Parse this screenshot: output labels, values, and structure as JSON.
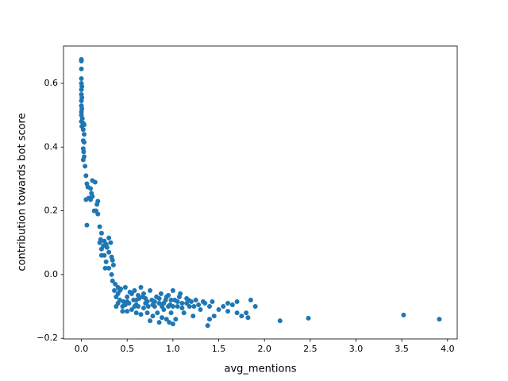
{
  "chart_data": {
    "type": "scatter",
    "xlabel": "avg_mentions",
    "ylabel": "contribution towards bot score",
    "color": "#1f77b4",
    "xlim": [
      -0.1955,
      4.1055
    ],
    "ylim": [
      -0.202,
      0.717
    ],
    "xticks": [
      {
        "value": 0,
        "label": "0.0"
      },
      0.5,
      {
        "value": 1,
        "label": "1.0"
      },
      1.5,
      {
        "value": 2,
        "label": "2.0"
      },
      2.5,
      {
        "value": 3,
        "label": "3.0"
      },
      3.5,
      {
        "value": 4,
        "label": "4.0"
      }
    ],
    "yticks": [
      {
        "value": -0.2,
        "label": "−0.2"
      },
      {
        "value": 0,
        "label": "0.0"
      },
      0.2,
      0.4,
      0.6
    ],
    "x": [
      0,
      0,
      0,
      0,
      0,
      0.005,
      0,
      0,
      0.005,
      0,
      0,
      0.005,
      0,
      0,
      0.01,
      0,
      0.02,
      0.03,
      0.005,
      0.02,
      0.03,
      0.02,
      0.03,
      0.02,
      0.025,
      0.03,
      0.02,
      0.04,
      0.05,
      0.06,
      0.07,
      0.1,
      0.11,
      0.08,
      0.1,
      0.12,
      0.15,
      0.12,
      0.05,
      0.06,
      0.17,
      0.18,
      0.16,
      0.14,
      0.18,
      0.2,
      0.22,
      0.21,
      0.2,
      0.24,
      0.22,
      0.25,
      0.27,
      0.3,
      0.32,
      0.28,
      0.3,
      0.25,
      0.22,
      0.27,
      0.33,
      0.34,
      0.35,
      0.26,
      0.3,
      0.33,
      0.34,
      0.37,
      0.4,
      0.36,
      0.42,
      0.38,
      0.4,
      0.42,
      0.45,
      0.48,
      0.5,
      0.52,
      0.55,
      0.5,
      0.46,
      0.58,
      0.6,
      0.62,
      0.65,
      0.67,
      0.7,
      0.72,
      0.68,
      0.75,
      0.77,
      0.8,
      0.82,
      0.78,
      0.85,
      0.87,
      0.9,
      0.92,
      0.95,
      0.97,
      1.0,
      1.02,
      1.05,
      1.07,
      1.1,
      1.12,
      1.15,
      1.18,
      1.2,
      1.22,
      1.25,
      1.28,
      1.3,
      1.33,
      1.35,
      1.4,
      1.43,
      0.55,
      0.6,
      0.63,
      0.73,
      0.83,
      0.88,
      0.93,
      0.98,
      1.0,
      1.03,
      0.96,
      0.85,
      0.75,
      0.65,
      0.45,
      0.4,
      0.38,
      0.43,
      0.53,
      0.57,
      0.62,
      0.7,
      0.8,
      0.9,
      1.0,
      1.1,
      1.15,
      1.05,
      0.95,
      0.85,
      0.72,
      0.6,
      0.5,
      1.17,
      1.23,
      0.93,
      1.08,
      0.98,
      0.88,
      0.78,
      0.68,
      0.58,
      0.48,
      1.55,
      1.6,
      1.65,
      1.7,
      1.75,
      1.8,
      1.85,
      1.9,
      1.82,
      1.7,
      1.6,
      2.17,
      2.48,
      3.52,
      3.91,
      1.45,
      1.38,
      1.4,
      1.5
    ],
    "values": [
      0.675,
      0.67,
      0.645,
      0.615,
      0.6,
      0.59,
      0.58,
      0.565,
      0.555,
      0.545,
      0.53,
      0.52,
      0.51,
      0.5,
      0.49,
      0.48,
      0.475,
      0.47,
      0.465,
      0.455,
      0.44,
      0.42,
      0.415,
      0.395,
      0.385,
      0.37,
      0.36,
      0.34,
      0.31,
      0.285,
      0.275,
      0.27,
      0.255,
      0.24,
      0.235,
      0.245,
      0.29,
      0.295,
      0.235,
      0.155,
      0.22,
      0.23,
      0.2,
      0.2,
      0.19,
      0.15,
      0.13,
      0.11,
      0.1,
      0.09,
      0.08,
      0.105,
      0.095,
      0.115,
      0.1,
      0.085,
      0.07,
      0.06,
      0.06,
      0.04,
      0.055,
      0.045,
      0.03,
      0.02,
      0.02,
      0.0,
      -0.02,
      -0.03,
      -0.04,
      -0.05,
      -0.05,
      -0.07,
      -0.06,
      -0.08,
      -0.1,
      -0.04,
      -0.07,
      -0.09,
      -0.11,
      -0.115,
      -0.085,
      -0.05,
      -0.08,
      -0.1,
      -0.04,
      -0.07,
      -0.09,
      -0.12,
      -0.06,
      -0.05,
      -0.08,
      -0.1,
      -0.07,
      -0.13,
      -0.09,
      -0.06,
      -0.11,
      -0.08,
      -0.065,
      -0.095,
      -0.05,
      -0.08,
      -0.1,
      -0.07,
      -0.09,
      -0.12,
      -0.075,
      -0.1,
      -0.085,
      -0.13,
      -0.08,
      -0.095,
      -0.11,
      -0.085,
      -0.09,
      -0.1,
      -0.085,
      -0.06,
      -0.12,
      -0.075,
      -0.1,
      -0.12,
      -0.135,
      -0.14,
      -0.12,
      -0.155,
      -0.14,
      -0.15,
      -0.15,
      -0.145,
      -0.125,
      -0.115,
      -0.09,
      -0.1,
      -0.045,
      -0.055,
      -0.08,
      -0.065,
      -0.075,
      -0.085,
      -0.09,
      -0.1,
      -0.105,
      -0.09,
      -0.085,
      -0.1,
      -0.075,
      -0.085,
      -0.095,
      -0.085,
      -0.08,
      -0.1,
      -0.07,
      -0.06,
      -0.08,
      -0.1,
      -0.095,
      -0.105,
      -0.1,
      -0.095,
      -0.1,
      -0.115,
      -0.095,
      -0.12,
      -0.13,
      -0.12,
      -0.08,
      -0.1,
      -0.135,
      -0.085,
      -0.09,
      -0.145,
      -0.137,
      -0.127,
      -0.14,
      -0.13,
      -0.16,
      -0.14,
      -0.11
    ]
  }
}
